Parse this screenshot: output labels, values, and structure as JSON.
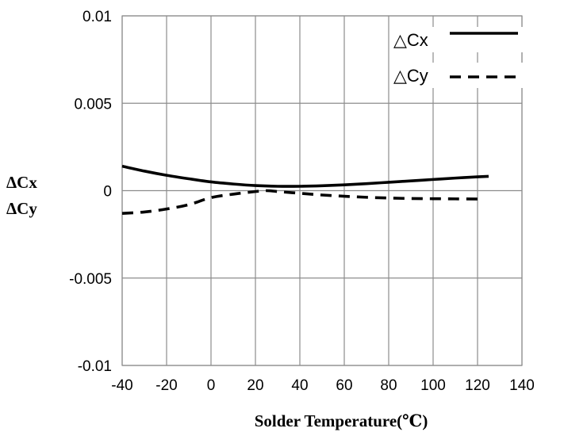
{
  "chart_data": {
    "type": "line",
    "title": "",
    "xlabel": "Solder Temperature(℃)",
    "ylabel_lines": [
      "ΔCx",
      "ΔCy"
    ],
    "xlim": [
      -40,
      140
    ],
    "ylim": [
      -0.01,
      0.01
    ],
    "x_ticks": [
      -40,
      -20,
      0,
      20,
      40,
      60,
      80,
      100,
      120,
      140
    ],
    "y_ticks": [
      -0.01,
      -0.005,
      0,
      0.005,
      0.01
    ],
    "x_tick_labels": [
      "-40",
      "-20",
      "0",
      "20",
      "40",
      "60",
      "80",
      "100",
      "120",
      "140"
    ],
    "y_tick_labels": [
      "-0.01",
      "-0.005",
      "0",
      "0.005",
      "0.01"
    ],
    "grid": true,
    "legend_position": "top-right",
    "series": [
      {
        "name": "△Cx",
        "style": "solid",
        "color": "#000000",
        "x": [
          -40,
          -30,
          -20,
          -10,
          0,
          10,
          20,
          30,
          40,
          50,
          60,
          70,
          80,
          90,
          100,
          110,
          120,
          125
        ],
        "y": [
          0.0014,
          0.00112,
          0.00088,
          0.00068,
          0.0005,
          0.00038,
          0.00029,
          0.00025,
          0.00025,
          0.00028,
          0.00033,
          0.0004,
          0.00048,
          0.00056,
          0.00064,
          0.00072,
          0.00079,
          0.00082
        ]
      },
      {
        "name": "△Cy",
        "style": "dashed",
        "color": "#000000",
        "x": [
          -40,
          -30,
          -20,
          -10,
          0,
          10,
          20,
          25,
          30,
          40,
          50,
          60,
          70,
          80,
          90,
          100,
          110,
          120
        ],
        "y": [
          -0.0013,
          -0.00122,
          -0.00105,
          -0.0008,
          -0.0004,
          -0.0002,
          -5e-05,
          0.0,
          -5e-05,
          -0.00015,
          -0.00025,
          -0.00032,
          -0.00038,
          -0.00042,
          -0.00045,
          -0.00046,
          -0.00047,
          -0.00048
        ]
      }
    ]
  }
}
